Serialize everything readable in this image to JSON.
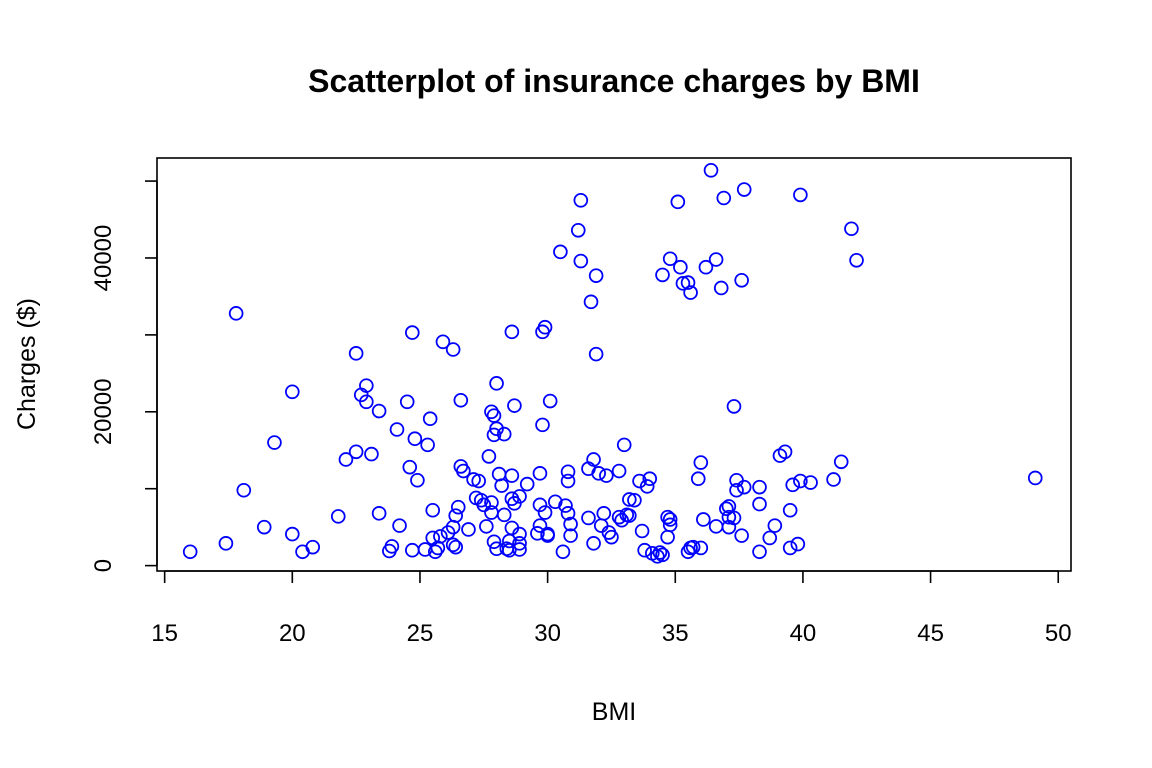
{
  "chart_data": {
    "type": "scatter",
    "title": "Scatterplot of insurance charges by BMI",
    "xlabel": "BMI",
    "ylabel": "Charges ($)",
    "xlim": [
      14.7,
      50.5
    ],
    "ylim": [
      -700,
      53000
    ],
    "xticks": [
      15,
      20,
      25,
      30,
      35,
      40,
      45,
      50
    ],
    "yticks": [
      0,
      10000,
      20000,
      30000,
      40000,
      50000
    ],
    "ytick_labels": [
      "0",
      "",
      "20000",
      "",
      "40000",
      ""
    ],
    "point_color": "#0000ff",
    "grid": false,
    "points": [
      [
        16.0,
        1800
      ],
      [
        17.4,
        2900
      ],
      [
        17.8,
        32800
      ],
      [
        18.1,
        9800
      ],
      [
        18.9,
        5000
      ],
      [
        19.3,
        16000
      ],
      [
        20.0,
        4100
      ],
      [
        20.0,
        22600
      ],
      [
        20.4,
        1800
      ],
      [
        20.8,
        2400
      ],
      [
        21.8,
        6400
      ],
      [
        22.1,
        13800
      ],
      [
        22.5,
        27600
      ],
      [
        22.5,
        14800
      ],
      [
        22.7,
        22200
      ],
      [
        22.9,
        23400
      ],
      [
        22.9,
        21300
      ],
      [
        23.1,
        14500
      ],
      [
        23.4,
        6800
      ],
      [
        23.4,
        20100
      ],
      [
        23.8,
        1900
      ],
      [
        23.9,
        2500
      ],
      [
        24.1,
        17700
      ],
      [
        24.2,
        5200
      ],
      [
        24.5,
        21300
      ],
      [
        24.6,
        12800
      ],
      [
        24.7,
        2000
      ],
      [
        24.7,
        30300
      ],
      [
        24.8,
        16500
      ],
      [
        24.9,
        11100
      ],
      [
        25.2,
        2100
      ],
      [
        25.3,
        15700
      ],
      [
        25.4,
        19100
      ],
      [
        25.5,
        7200
      ],
      [
        25.5,
        3600
      ],
      [
        25.6,
        1800
      ],
      [
        25.7,
        2300
      ],
      [
        25.8,
        3800
      ],
      [
        25.9,
        29100
      ],
      [
        26.1,
        4300
      ],
      [
        26.3,
        5000
      ],
      [
        26.3,
        28100
      ],
      [
        26.3,
        2700
      ],
      [
        26.4,
        2400
      ],
      [
        26.4,
        6500
      ],
      [
        26.5,
        7600
      ],
      [
        26.6,
        12900
      ],
      [
        26.6,
        21500
      ],
      [
        26.7,
        12300
      ],
      [
        26.9,
        4700
      ],
      [
        27.1,
        11200
      ],
      [
        27.2,
        8800
      ],
      [
        27.3,
        11000
      ],
      [
        27.4,
        8500
      ],
      [
        27.5,
        7900
      ],
      [
        27.6,
        5100
      ],
      [
        27.7,
        14200
      ],
      [
        27.8,
        8200
      ],
      [
        27.8,
        6900
      ],
      [
        27.8,
        20000
      ],
      [
        27.9,
        17000
      ],
      [
        27.9,
        19500
      ],
      [
        27.9,
        3100
      ],
      [
        28.0,
        23700
      ],
      [
        28.0,
        2200
      ],
      [
        28.0,
        17800
      ],
      [
        28.1,
        11900
      ],
      [
        28.2,
        10400
      ],
      [
        28.3,
        17100
      ],
      [
        28.3,
        6600
      ],
      [
        28.4,
        2200
      ],
      [
        28.5,
        3200
      ],
      [
        28.5,
        2000
      ],
      [
        28.6,
        30400
      ],
      [
        28.6,
        8700
      ],
      [
        28.6,
        4900
      ],
      [
        28.6,
        11700
      ],
      [
        28.7,
        20800
      ],
      [
        28.7,
        8100
      ],
      [
        28.9,
        2900
      ],
      [
        28.9,
        2100
      ],
      [
        28.9,
        4100
      ],
      [
        28.9,
        9000
      ],
      [
        29.2,
        10600
      ],
      [
        29.6,
        4200
      ],
      [
        29.7,
        5200
      ],
      [
        29.7,
        7900
      ],
      [
        29.7,
        12000
      ],
      [
        29.8,
        18300
      ],
      [
        29.8,
        30400
      ],
      [
        29.9,
        6900
      ],
      [
        29.9,
        31000
      ],
      [
        30.0,
        4100
      ],
      [
        30.0,
        3900
      ],
      [
        30.1,
        21400
      ],
      [
        30.3,
        8300
      ],
      [
        30.5,
        40800
      ],
      [
        30.6,
        1800
      ],
      [
        30.7,
        7800
      ],
      [
        30.8,
        11000
      ],
      [
        30.8,
        6800
      ],
      [
        30.8,
        12200
      ],
      [
        30.9,
        5400
      ],
      [
        30.9,
        3900
      ],
      [
        31.2,
        43600
      ],
      [
        31.3,
        47500
      ],
      [
        31.3,
        39600
      ],
      [
        31.6,
        12600
      ],
      [
        31.6,
        6200
      ],
      [
        31.7,
        34300
      ],
      [
        31.8,
        13800
      ],
      [
        31.8,
        2900
      ],
      [
        31.9,
        27500
      ],
      [
        31.9,
        37700
      ],
      [
        32.0,
        12000
      ],
      [
        32.1,
        5200
      ],
      [
        32.2,
        6800
      ],
      [
        32.3,
        11700
      ],
      [
        32.4,
        4300
      ],
      [
        32.5,
        3700
      ],
      [
        32.8,
        6300
      ],
      [
        32.8,
        12300
      ],
      [
        32.9,
        5900
      ],
      [
        33.0,
        15700
      ],
      [
        33.1,
        6600
      ],
      [
        33.2,
        8600
      ],
      [
        33.2,
        6500
      ],
      [
        33.4,
        8500
      ],
      [
        33.6,
        11000
      ],
      [
        33.7,
        4500
      ],
      [
        33.8,
        2000
      ],
      [
        33.9,
        10300
      ],
      [
        34.0,
        11300
      ],
      [
        34.1,
        1600
      ],
      [
        34.3,
        1200
      ],
      [
        34.4,
        1700
      ],
      [
        34.5,
        37800
      ],
      [
        34.5,
        1400
      ],
      [
        34.7,
        6300
      ],
      [
        34.7,
        3700
      ],
      [
        34.8,
        6000
      ],
      [
        34.8,
        5300
      ],
      [
        34.8,
        39900
      ],
      [
        35.1,
        47300
      ],
      [
        35.2,
        38800
      ],
      [
        35.3,
        36700
      ],
      [
        35.5,
        36800
      ],
      [
        35.5,
        1800
      ],
      [
        35.6,
        35500
      ],
      [
        35.6,
        2300
      ],
      [
        35.7,
        2400
      ],
      [
        35.9,
        11300
      ],
      [
        36.0,
        2300
      ],
      [
        36.0,
        13400
      ],
      [
        36.1,
        6000
      ],
      [
        36.2,
        38800
      ],
      [
        36.4,
        51400
      ],
      [
        36.6,
        5100
      ],
      [
        36.6,
        39800
      ],
      [
        36.8,
        36100
      ],
      [
        36.9,
        47800
      ],
      [
        37.0,
        7400
      ],
      [
        37.1,
        5000
      ],
      [
        37.1,
        6300
      ],
      [
        37.1,
        7700
      ],
      [
        37.3,
        20700
      ],
      [
        37.3,
        6200
      ],
      [
        37.4,
        9800
      ],
      [
        37.4,
        11100
      ],
      [
        37.6,
        3900
      ],
      [
        37.6,
        37100
      ],
      [
        37.7,
        48900
      ],
      [
        37.7,
        10200
      ],
      [
        38.3,
        10200
      ],
      [
        38.3,
        1800
      ],
      [
        38.3,
        8000
      ],
      [
        38.7,
        3600
      ],
      [
        38.9,
        5200
      ],
      [
        39.1,
        14300
      ],
      [
        39.3,
        14800
      ],
      [
        39.5,
        2300
      ],
      [
        39.5,
        7200
      ],
      [
        39.6,
        10500
      ],
      [
        39.8,
        2800
      ],
      [
        39.9,
        11000
      ],
      [
        39.9,
        48200
      ],
      [
        40.3,
        10800
      ],
      [
        41.2,
        11200
      ],
      [
        41.5,
        13500
      ],
      [
        41.9,
        43800
      ],
      [
        42.1,
        39700
      ],
      [
        49.1,
        11400
      ]
    ]
  }
}
